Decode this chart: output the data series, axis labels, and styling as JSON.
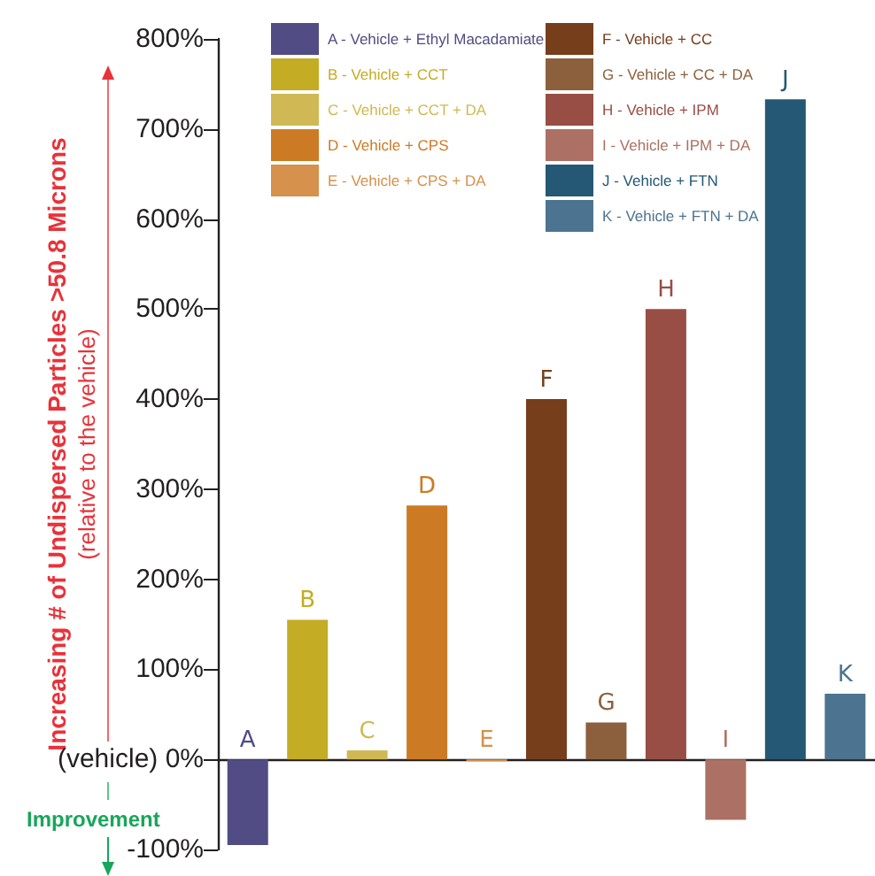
{
  "chart_data": {
    "type": "bar",
    "ylabel": "Increasing # of Undispersed Particles >50.8 Microns\n(relative to the vehicle)",
    "annotations": [
      "Improvement"
    ],
    "categories": [
      "A",
      "B",
      "C",
      "D",
      "E",
      "F",
      "G",
      "H",
      "I",
      "J",
      "K"
    ],
    "stacked": true,
    "series": [
      {
        "name": "A - Vehicle + Ethyl Macadamiate",
        "color": "#514c84",
        "values": [
          -95,
          null,
          null,
          null,
          null,
          null,
          null,
          null,
          null,
          null,
          null
        ]
      },
      {
        "name": "B - Vehicle + CCT",
        "color": "#c4ac24",
        "values": [
          null,
          155,
          null,
          null,
          null,
          null,
          null,
          null,
          null,
          null,
          null
        ]
      },
      {
        "name": "C - Vehicle + CCT + DA",
        "color": "#d0b954",
        "values": [
          null,
          null,
          10,
          null,
          null,
          null,
          null,
          null,
          null,
          null,
          null
        ]
      },
      {
        "name": "D - Vehicle + CPS",
        "color": "#cc7b24",
        "values": [
          null,
          null,
          null,
          282,
          null,
          null,
          null,
          null,
          null,
          null,
          null
        ]
      },
      {
        "name": "E - Vehicle + CPS + DA",
        "color": "#d6914c",
        "values": [
          null,
          null,
          null,
          null,
          -2,
          null,
          null,
          null,
          null,
          null,
          null
        ]
      },
      {
        "name": "F - Vehicle + CC",
        "color": "#773e1c",
        "values": [
          null,
          null,
          null,
          null,
          null,
          400,
          null,
          null,
          null,
          null,
          null
        ]
      },
      {
        "name": "G - Vehicle + CC + DA",
        "color": "#8c603c",
        "values": [
          null,
          null,
          null,
          null,
          null,
          null,
          41,
          null,
          null,
          null,
          null
        ]
      },
      {
        "name": "H - Vehicle + IPM",
        "color": "#984e44",
        "values": [
          null,
          null,
          null,
          null,
          null,
          null,
          null,
          500,
          null,
          null,
          null
        ]
      },
      {
        "name": "I - Vehicle + IPM + DA",
        "color": "#ac7064",
        "values": [
          null,
          null,
          null,
          null,
          null,
          null,
          null,
          null,
          -67,
          null,
          null
        ]
      },
      {
        "name": "J - Vehicle + FTN",
        "color": "#245874",
        "values": [
          null,
          null,
          null,
          null,
          null,
          null,
          null,
          null,
          null,
          733,
          null
        ]
      },
      {
        "name": "K - Vehicle + FTN + DA",
        "color": "#4c7490",
        "values": [
          null,
          null,
          null,
          null,
          null,
          null,
          null,
          null,
          null,
          null,
          73
        ]
      }
    ],
    "ylim": [
      -100,
      800
    ],
    "yticks": [
      {
        "value": -100,
        "label": "-100%"
      },
      {
        "value": 0,
        "label": "(vehicle) 0%"
      },
      {
        "value": 100,
        "label": "100%"
      },
      {
        "value": 200,
        "label": "200%"
      },
      {
        "value": 300,
        "label": "300%"
      },
      {
        "value": 400,
        "label": "400%"
      },
      {
        "value": 500,
        "label": "500%"
      },
      {
        "value": 600,
        "label": "600%"
      },
      {
        "value": 700,
        "label": "700%"
      },
      {
        "value": 800,
        "label": "800%"
      }
    ],
    "grid": false,
    "legend": "top",
    "tick_labels": "y"
  }
}
